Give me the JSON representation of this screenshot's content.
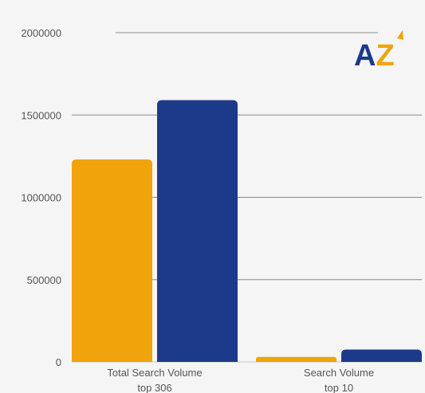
{
  "logo": {
    "text": "AZ",
    "colors": {
      "a": "#1d3a8a",
      "z": "#f0a30a"
    }
  },
  "chart_data": {
    "type": "bar",
    "categories": [
      [
        "Total Search Volume",
        "top 306"
      ],
      [
        "Search Volume",
        "top 10"
      ]
    ],
    "series": [
      {
        "values": [
          1230000,
          30000
        ],
        "color": "#f0a30a"
      },
      {
        "values": [
          1590000,
          75000
        ],
        "color": "#1d3a8a"
      }
    ],
    "ylim": [
      0,
      2000000
    ],
    "yticks": [
      0,
      500000,
      1000000,
      1500000,
      2000000
    ],
    "grid": true,
    "legend": "none"
  }
}
